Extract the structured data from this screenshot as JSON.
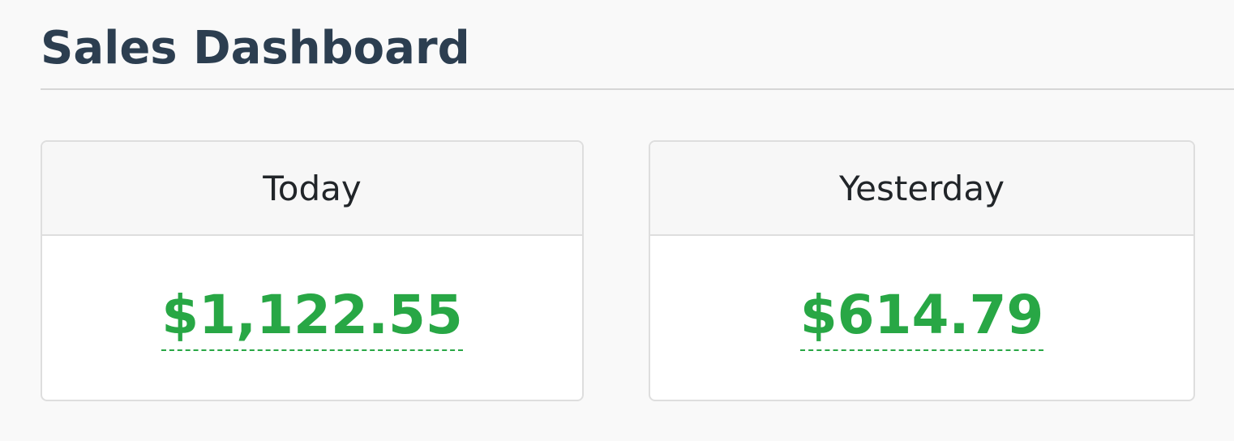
{
  "header": {
    "title": "Sales Dashboard"
  },
  "accent_color": "#28a745",
  "cards": [
    {
      "label": "Today",
      "value": "$1,122.55"
    },
    {
      "label": "Yesterday",
      "value": "$614.79"
    }
  ]
}
